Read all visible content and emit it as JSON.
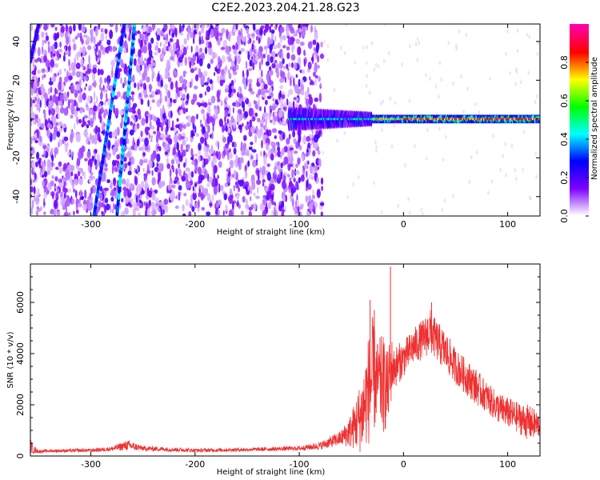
{
  "title": "C2E2.2023.204.21.28.G23",
  "chart_data": [
    {
      "type": "heatmap",
      "xlabel": "Height of straight line (km)",
      "ylabel": "Frequency (Hz)",
      "xlim": [
        -358,
        131
      ],
      "ylim": [
        -50,
        49
      ],
      "x_ticks": [
        -300,
        -200,
        -100,
        0,
        100
      ],
      "y_ticks": [
        -40,
        -20,
        0,
        20,
        40
      ],
      "colorbar": {
        "label": "Normalized spectral amplitude",
        "range": [
          0,
          1
        ],
        "ticks": [
          0.0,
          0.2,
          0.4,
          0.6,
          0.8
        ],
        "tick_labels": [
          "0.0",
          "0.2",
          "0.4",
          "0.6",
          "0.8"
        ],
        "colors": [
          "#ffffff",
          "#7c00ff",
          "#0000ff",
          "#00ffff",
          "#00ff00",
          "#ffff00",
          "#ff0000",
          "#ff00aa"
        ]
      },
      "features": [
        {
          "kind": "noise_region",
          "x_range": [
            -358,
            -78
          ],
          "y_range": [
            -50,
            49
          ],
          "amplitude": 0.12
        },
        {
          "kind": "streak",
          "x_start": -297,
          "y_start": -50,
          "x_end": -268,
          "y_end": 49,
          "amplitude": 0.35
        },
        {
          "kind": "streak",
          "x_start": -275,
          "y_start": -50,
          "x_end": -258,
          "y_end": 49,
          "amplitude": 0.4
        },
        {
          "kind": "streak",
          "x_start": -358,
          "y_start": 30,
          "x_end": -350,
          "y_end": 49,
          "amplitude": 0.25
        },
        {
          "kind": "signal_band",
          "x_range": [
            -110,
            131
          ],
          "center_hz": 0,
          "amplitude": 0.8
        }
      ]
    },
    {
      "type": "line",
      "xlabel": "Height of straight line (km)",
      "ylabel": "SNR (10 * v/v)",
      "xlim": [
        -358,
        131
      ],
      "ylim": [
        0,
        7500
      ],
      "x_ticks": [
        -300,
        -200,
        -100,
        0,
        100
      ],
      "y_ticks": [
        0,
        2000,
        4000,
        6000
      ],
      "color": "#ee3030",
      "x": [
        -358,
        -355,
        -350,
        -340,
        -300,
        -280,
        -265,
        -250,
        -200,
        -150,
        -100,
        -80,
        -60,
        -50,
        -40,
        -35,
        -30,
        -25,
        -20,
        -15,
        -12,
        -10,
        -5,
        0,
        10,
        20,
        25,
        30,
        40,
        50,
        60,
        70,
        80,
        90,
        100,
        110,
        120,
        131
      ],
      "y_mid": [
        400,
        250,
        180,
        200,
        220,
        280,
        420,
        300,
        220,
        250,
        300,
        400,
        700,
        1000,
        1600,
        2400,
        3000,
        3000,
        2800,
        2600,
        3500,
        3400,
        3600,
        3800,
        4300,
        4600,
        4900,
        4600,
        4100,
        3500,
        3100,
        2700,
        2300,
        1900,
        1700,
        1500,
        1300,
        1200
      ],
      "y_spread": [
        300,
        150,
        60,
        60,
        70,
        90,
        200,
        100,
        70,
        70,
        90,
        150,
        300,
        700,
        1500,
        2000,
        2500,
        1500,
        2000,
        1500,
        1500,
        800,
        800,
        700,
        700,
        800,
        900,
        800,
        800,
        700,
        700,
        700,
        600,
        600,
        600,
        600,
        700,
        500
      ],
      "spikes": [
        {
          "x": -12.5,
          "y": 7400
        },
        {
          "x": -32,
          "y": 6100
        },
        {
          "x": -28,
          "y": 5700
        },
        {
          "x": 27,
          "y": 6000
        }
      ]
    }
  ]
}
